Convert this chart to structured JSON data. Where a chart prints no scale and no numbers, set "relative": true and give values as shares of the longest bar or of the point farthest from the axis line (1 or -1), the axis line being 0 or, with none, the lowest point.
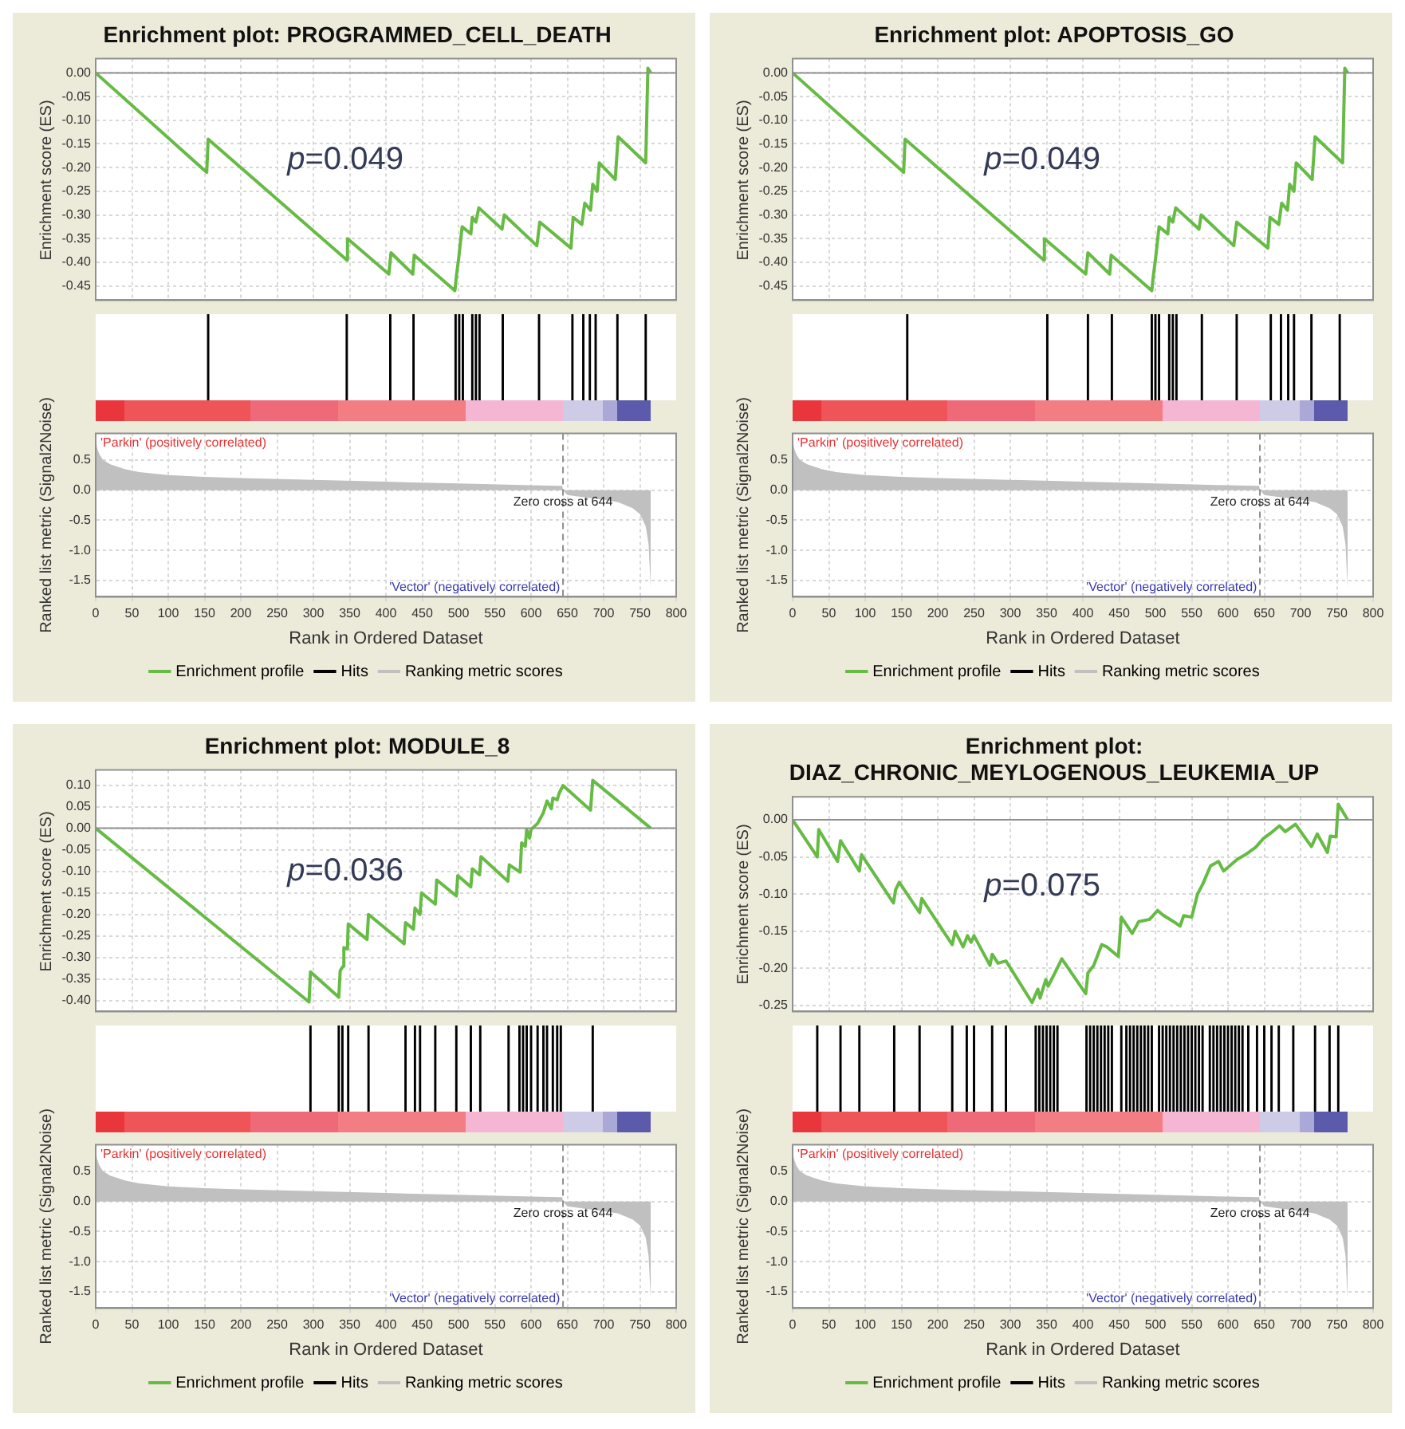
{
  "chart_data": [
    {
      "type": "line",
      "title": "Enrichment plot: PROGRAMMED_CELL_DEATH",
      "ylabel": "Enrichment score (ES)",
      "xlim": [
        0,
        800
      ],
      "xticks": [
        {
          "value": 0,
          "label": null
        },
        {
          "value": 50,
          "label": null
        },
        {
          "value": 100,
          "label": null
        },
        {
          "value": 150,
          "label": null
        },
        {
          "value": 200,
          "label": null
        },
        {
          "value": 250,
          "label": null
        },
        {
          "value": 300,
          "label": null
        },
        {
          "value": 350,
          "label": null
        },
        {
          "value": 400,
          "label": null
        },
        {
          "value": 450,
          "label": null
        },
        {
          "value": 500,
          "label": null
        },
        {
          "value": 550,
          "label": null
        },
        {
          "value": 600,
          "label": null
        },
        {
          "value": 650,
          "label": null
        },
        {
          "value": 700,
          "label": null
        },
        {
          "value": 750,
          "label": null
        },
        {
          "value": 800,
          "label": null
        }
      ],
      "ylim": [
        -0.48,
        0.03
      ],
      "yticks": [
        {
          "value": 0,
          "label": "0.00"
        },
        {
          "value": -0.05,
          "label": "-0.05"
        },
        {
          "value": -0.1,
          "label": "-0.10"
        },
        {
          "value": -0.15,
          "label": "-0.15"
        },
        {
          "value": -0.2,
          "label": "-0.20"
        },
        {
          "value": -0.25,
          "label": "-0.25"
        },
        {
          "value": -0.3,
          "label": "-0.30"
        },
        {
          "value": -0.35,
          "label": "-0.35"
        },
        {
          "value": -0.4,
          "label": "-0.40"
        },
        {
          "value": -0.45,
          "label": "-0.45"
        }
      ],
      "grid": true,
      "tick_labels": "y",
      "annotations": [
        "p=0.049"
      ],
      "ref_lines": [
        {
          "axis": "y",
          "value": 0,
          "color": "#909090"
        }
      ],
      "series": [
        {
          "name": "Enrichment profile",
          "color": "#66bb44",
          "x": [
            0,
            153,
            155,
            346,
            347,
            404,
            407,
            437,
            439,
            495,
            497,
            500,
            505,
            517,
            519,
            524,
            528,
            560,
            563,
            608,
            612,
            655,
            658,
            670,
            674,
            682,
            685,
            691,
            694,
            716,
            720,
            758,
            761,
            765
          ],
          "values": [
            0,
            -0.21,
            -0.14,
            -0.395,
            -0.35,
            -0.425,
            -0.38,
            -0.425,
            -0.385,
            -0.46,
            -0.43,
            -0.395,
            -0.325,
            -0.34,
            -0.305,
            -0.315,
            -0.285,
            -0.33,
            -0.3,
            -0.365,
            -0.315,
            -0.37,
            -0.305,
            -0.32,
            -0.275,
            -0.29,
            -0.235,
            -0.25,
            -0.19,
            -0.225,
            -0.135,
            -0.19,
            0.01,
            0
          ]
        }
      ]
    },
    {
      "type": "bar",
      "relative": true,
      "tick_labels": false,
      "xlim": [
        0,
        800
      ],
      "series": [
        {
          "name": "Hits",
          "color": "#000000",
          "x": [
            155,
            346,
            406,
            438,
            496,
            501,
            506,
            519,
            524,
            529,
            561,
            611,
            657,
            672,
            681,
            689,
            719,
            758
          ],
          "values": [
            1,
            1,
            1,
            1,
            1,
            1,
            1,
            1,
            1,
            1,
            1,
            1,
            1,
            1,
            1,
            1,
            1,
            1
          ]
        }
      ]
    },
    {
      "type": "area",
      "ylabel": "Ranked list metric (Signal2Noise)",
      "xlabel": "Rank in Ordered Dataset",
      "xlim": [
        0,
        800
      ],
      "xticks": [
        0,
        50,
        100,
        150,
        200,
        250,
        300,
        350,
        400,
        450,
        500,
        550,
        600,
        650,
        700,
        750,
        800
      ],
      "ylim": [
        -1.77,
        0.94
      ],
      "yticks": [
        {
          "value": 0.5,
          "label": "0.5"
        },
        {
          "value": 0,
          "label": "0.0"
        },
        {
          "value": -0.5,
          "label": "-0.5"
        },
        {
          "value": -1,
          "label": "-1.0"
        },
        {
          "value": -1.5,
          "label": "-1.5"
        }
      ],
      "grid": true,
      "legend": "bottom",
      "annotations": [
        "'Parkin' (positively correlated)",
        "'Vector' (negatively correlated)"
      ],
      "ref_lines": [
        {
          "axis": "x",
          "value": 644,
          "label": "Zero cross at 644",
          "line_style": "dashed",
          "color": "#909090"
        }
      ],
      "series": [
        {
          "name": "Ranking metric scores",
          "color": "#c0c0c0",
          "x": [
            0,
            2,
            5,
            10,
            20,
            40,
            60,
            100,
            150,
            200,
            300,
            400,
            500,
            600,
            640,
            643,
            644,
            650,
            680,
            700,
            720,
            740,
            750,
            758,
            762,
            765
          ],
          "values": [
            0.85,
            0.7,
            0.6,
            0.5,
            0.43,
            0.35,
            0.3,
            0.25,
            0.22,
            0.2,
            0.17,
            0.14,
            0.11,
            0.08,
            0.07,
            0.07,
            0,
            -0.08,
            -0.13,
            -0.16,
            -0.2,
            -0.3,
            -0.4,
            -0.6,
            -0.9,
            -1.65
          ]
        }
      ]
    },
    {
      "type": "line",
      "title": "Enrichment plot: APOPTOSIS_GO",
      "ylabel": "Enrichment score (ES)",
      "xlim": [
        0,
        800
      ],
      "xticks": [
        {
          "value": 0,
          "label": null
        },
        {
          "value": 50,
          "label": null
        },
        {
          "value": 100,
          "label": null
        },
        {
          "value": 150,
          "label": null
        },
        {
          "value": 200,
          "label": null
        },
        {
          "value": 250,
          "label": null
        },
        {
          "value": 300,
          "label": null
        },
        {
          "value": 350,
          "label": null
        },
        {
          "value": 400,
          "label": null
        },
        {
          "value": 450,
          "label": null
        },
        {
          "value": 500,
          "label": null
        },
        {
          "value": 550,
          "label": null
        },
        {
          "value": 600,
          "label": null
        },
        {
          "value": 650,
          "label": null
        },
        {
          "value": 700,
          "label": null
        },
        {
          "value": 750,
          "label": null
        },
        {
          "value": 800,
          "label": null
        }
      ],
      "ylim": [
        -0.48,
        0.03
      ],
      "yticks": [
        {
          "value": 0,
          "label": "0.00"
        },
        {
          "value": -0.05,
          "label": "-0.05"
        },
        {
          "value": -0.1,
          "label": "-0.10"
        },
        {
          "value": -0.15,
          "label": "-0.15"
        },
        {
          "value": -0.2,
          "label": "-0.20"
        },
        {
          "value": -0.25,
          "label": "-0.25"
        },
        {
          "value": -0.3,
          "label": "-0.30"
        },
        {
          "value": -0.35,
          "label": "-0.35"
        },
        {
          "value": -0.4,
          "label": "-0.40"
        },
        {
          "value": -0.45,
          "label": "-0.45"
        }
      ],
      "grid": true,
      "tick_labels": "y",
      "annotations": [
        "p=0.049"
      ],
      "ref_lines": [
        {
          "axis": "y",
          "value": 0,
          "color": "#909090"
        }
      ],
      "series": [
        {
          "name": "Enrichment profile",
          "color": "#66bb44",
          "x": [
            0,
            153,
            155,
            346,
            347,
            404,
            407,
            437,
            439,
            495,
            497,
            500,
            505,
            517,
            519,
            524,
            528,
            560,
            563,
            608,
            612,
            655,
            658,
            670,
            674,
            682,
            685,
            691,
            694,
            716,
            720,
            758,
            761,
            765
          ],
          "values": [
            0,
            -0.21,
            -0.14,
            -0.395,
            -0.35,
            -0.425,
            -0.38,
            -0.425,
            -0.385,
            -0.46,
            -0.43,
            -0.395,
            -0.325,
            -0.34,
            -0.305,
            -0.315,
            -0.285,
            -0.33,
            -0.3,
            -0.365,
            -0.315,
            -0.37,
            -0.305,
            -0.32,
            -0.275,
            -0.29,
            -0.235,
            -0.25,
            -0.19,
            -0.225,
            -0.135,
            -0.19,
            0.01,
            0
          ]
        }
      ]
    },
    {
      "type": "bar",
      "relative": true,
      "tick_labels": false,
      "xlim": [
        0,
        800
      ],
      "series": [
        {
          "name": "Hits",
          "color": "#000000",
          "x": [
            158,
            351,
            407,
            440,
            495,
            500,
            505,
            519,
            524,
            529,
            564,
            612,
            659,
            673,
            683,
            691,
            715,
            754
          ],
          "values": [
            1,
            1,
            1,
            1,
            1,
            1,
            1,
            1,
            1,
            1,
            1,
            1,
            1,
            1,
            1,
            1,
            1,
            1
          ]
        }
      ]
    },
    {
      "type": "area",
      "ylabel": "Ranked list metric (Signal2Noise)",
      "xlabel": "Rank in Ordered Dataset",
      "xlim": [
        0,
        800
      ],
      "xticks": [
        0,
        50,
        100,
        150,
        200,
        250,
        300,
        350,
        400,
        450,
        500,
        550,
        600,
        650,
        700,
        750,
        800
      ],
      "ylim": [
        -1.77,
        0.94
      ],
      "yticks": [
        {
          "value": 0.5,
          "label": "0.5"
        },
        {
          "value": 0,
          "label": "0.0"
        },
        {
          "value": -0.5,
          "label": "-0.5"
        },
        {
          "value": -1,
          "label": "-1.0"
        },
        {
          "value": -1.5,
          "label": "-1.5"
        }
      ],
      "grid": true,
      "legend": "bottom",
      "annotations": [
        "'Parkin' (positively correlated)",
        "'Vector' (negatively correlated)"
      ],
      "ref_lines": [
        {
          "axis": "x",
          "value": 644,
          "label": "Zero cross at 644",
          "line_style": "dashed",
          "color": "#909090"
        }
      ],
      "series": [
        {
          "name": "Ranking metric scores",
          "color": "#c0c0c0",
          "x": [
            0,
            2,
            5,
            10,
            20,
            40,
            60,
            100,
            150,
            200,
            300,
            400,
            500,
            600,
            640,
            643,
            644,
            650,
            680,
            700,
            720,
            740,
            750,
            758,
            762,
            765
          ],
          "values": [
            0.85,
            0.7,
            0.6,
            0.5,
            0.43,
            0.35,
            0.3,
            0.25,
            0.22,
            0.2,
            0.17,
            0.14,
            0.11,
            0.08,
            0.07,
            0.07,
            0,
            -0.08,
            -0.13,
            -0.16,
            -0.2,
            -0.3,
            -0.4,
            -0.6,
            -0.9,
            -1.65
          ]
        }
      ]
    },
    {
      "type": "line",
      "title": "Enrichment plot: MODULE_8",
      "ylabel": "Enrichment score (ES)",
      "xlim": [
        0,
        800
      ],
      "xticks": [
        {
          "value": 0,
          "label": null
        },
        {
          "value": 50,
          "label": null
        },
        {
          "value": 100,
          "label": null
        },
        {
          "value": 150,
          "label": null
        },
        {
          "value": 200,
          "label": null
        },
        {
          "value": 250,
          "label": null
        },
        {
          "value": 300,
          "label": null
        },
        {
          "value": 350,
          "label": null
        },
        {
          "value": 400,
          "label": null
        },
        {
          "value": 450,
          "label": null
        },
        {
          "value": 500,
          "label": null
        },
        {
          "value": 550,
          "label": null
        },
        {
          "value": 600,
          "label": null
        },
        {
          "value": 650,
          "label": null
        },
        {
          "value": 700,
          "label": null
        },
        {
          "value": 750,
          "label": null
        },
        {
          "value": 800,
          "label": null
        }
      ],
      "ylim": [
        -0.425,
        0.135
      ],
      "yticks": [
        {
          "value": 0.1,
          "label": "0.10"
        },
        {
          "value": 0.05,
          "label": "0.05"
        },
        {
          "value": 0,
          "label": "0.00"
        },
        {
          "value": -0.05,
          "label": "-0.05"
        },
        {
          "value": -0.1,
          "label": "-0.10"
        },
        {
          "value": -0.15,
          "label": "-0.15"
        },
        {
          "value": -0.2,
          "label": "-0.20"
        },
        {
          "value": -0.25,
          "label": "-0.25"
        },
        {
          "value": -0.3,
          "label": "-0.30"
        },
        {
          "value": -0.35,
          "label": "-0.35"
        },
        {
          "value": -0.4,
          "label": "-0.40"
        }
      ],
      "grid": true,
      "tick_labels": "y",
      "annotations": [
        "p=0.036"
      ],
      "ref_lines": [
        {
          "axis": "y",
          "value": 0,
          "color": "#909090"
        }
      ],
      "series": [
        {
          "name": "Enrichment profile",
          "color": "#66bb44",
          "x": [
            0,
            294,
            296,
            335,
            337,
            341,
            342,
            347,
            348,
            374,
            376,
            425,
            427,
            438,
            440,
            447,
            449,
            468,
            470,
            497,
            499,
            517,
            519,
            529,
            531,
            568,
            570,
            585,
            587,
            592,
            594,
            598,
            600,
            609,
            617,
            622,
            628,
            630,
            636,
            639,
            644,
            682,
            685,
            765
          ],
          "values": [
            0,
            -0.403,
            -0.333,
            -0.392,
            -0.33,
            -0.32,
            -0.277,
            -0.28,
            -0.222,
            -0.258,
            -0.2,
            -0.268,
            -0.219,
            -0.234,
            -0.185,
            -0.2,
            -0.15,
            -0.176,
            -0.12,
            -0.157,
            -0.11,
            -0.136,
            -0.094,
            -0.108,
            -0.066,
            -0.123,
            -0.085,
            -0.102,
            -0.034,
            -0.042,
            -0.003,
            -0.023,
            -0.003,
            0.011,
            0.036,
            0.063,
            0.045,
            0.07,
            0.066,
            0.082,
            0.099,
            0.042,
            0.111,
            0
          ]
        }
      ]
    },
    {
      "type": "bar",
      "relative": true,
      "tick_labels": false,
      "xlim": [
        0,
        800
      ],
      "series": [
        {
          "name": "Hits",
          "color": "#000000",
          "x": [
            296,
            335,
            340,
            348,
            376,
            427,
            440,
            447,
            468,
            497,
            517,
            530,
            569,
            584,
            589,
            594,
            600,
            609,
            617,
            622,
            630,
            636,
            641,
            685
          ],
          "values": [
            1,
            1,
            1,
            1,
            1,
            1,
            1,
            1,
            1,
            1,
            1,
            1,
            1,
            1,
            1,
            1,
            1,
            1,
            1,
            1,
            1,
            1,
            1,
            1
          ]
        }
      ]
    },
    {
      "type": "area",
      "ylabel": "Ranked list metric (Signal2Noise)",
      "xlabel": "Rank in Ordered Dataset",
      "xlim": [
        0,
        800
      ],
      "xticks": [
        0,
        50,
        100,
        150,
        200,
        250,
        300,
        350,
        400,
        450,
        500,
        550,
        600,
        650,
        700,
        750,
        800
      ],
      "ylim": [
        -1.77,
        0.94
      ],
      "yticks": [
        {
          "value": 0.5,
          "label": "0.5"
        },
        {
          "value": 0,
          "label": "0.0"
        },
        {
          "value": -0.5,
          "label": "-0.5"
        },
        {
          "value": -1,
          "label": "-1.0"
        },
        {
          "value": -1.5,
          "label": "-1.5"
        }
      ],
      "grid": true,
      "legend": "bottom",
      "annotations": [
        "'Parkin' (positively correlated)",
        "'Vector' (negatively correlated)"
      ],
      "ref_lines": [
        {
          "axis": "x",
          "value": 644,
          "label": "Zero cross at 644",
          "line_style": "dashed",
          "color": "#909090"
        }
      ],
      "series": [
        {
          "name": "Ranking metric scores",
          "color": "#c0c0c0",
          "x": [
            0,
            2,
            5,
            10,
            20,
            40,
            60,
            100,
            150,
            200,
            300,
            400,
            500,
            600,
            640,
            643,
            644,
            650,
            680,
            700,
            720,
            740,
            750,
            758,
            762,
            765
          ],
          "values": [
            0.85,
            0.7,
            0.6,
            0.5,
            0.43,
            0.35,
            0.3,
            0.25,
            0.22,
            0.2,
            0.17,
            0.14,
            0.11,
            0.08,
            0.07,
            0.07,
            0,
            -0.08,
            -0.13,
            -0.16,
            -0.2,
            -0.3,
            -0.4,
            -0.6,
            -0.9,
            -1.65
          ]
        }
      ]
    },
    {
      "type": "line",
      "title": "Enrichment plot: DIAZ_CHRONIC_MEYLOGENOUS_LEUKEMIA_UP",
      "ylabel": "Enrichment score (ES)",
      "xlim": [
        0,
        800
      ],
      "xticks": [
        {
          "value": 0,
          "label": null
        },
        {
          "value": 50,
          "label": null
        },
        {
          "value": 100,
          "label": null
        },
        {
          "value": 150,
          "label": null
        },
        {
          "value": 200,
          "label": null
        },
        {
          "value": 250,
          "label": null
        },
        {
          "value": 300,
          "label": null
        },
        {
          "value": 350,
          "label": null
        },
        {
          "value": 400,
          "label": null
        },
        {
          "value": 450,
          "label": null
        },
        {
          "value": 500,
          "label": null
        },
        {
          "value": 550,
          "label": null
        },
        {
          "value": 600,
          "label": null
        },
        {
          "value": 650,
          "label": null
        },
        {
          "value": 700,
          "label": null
        },
        {
          "value": 750,
          "label": null
        },
        {
          "value": 800,
          "label": null
        }
      ],
      "ylim": [
        -0.258,
        0.031
      ],
      "yticks": [
        {
          "value": 0,
          "label": "0.00"
        },
        {
          "value": -0.05,
          "label": "-0.05"
        },
        {
          "value": -0.1,
          "label": "-0.10"
        },
        {
          "value": -0.15,
          "label": "-0.15"
        },
        {
          "value": -0.2,
          "label": "-0.20"
        },
        {
          "value": -0.25,
          "label": "-0.25"
        }
      ],
      "grid": true,
      "tick_labels": "y",
      "annotations": [
        "p=0.075"
      ],
      "ref_lines": [
        {
          "axis": "y",
          "value": 0,
          "color": "#909090"
        }
      ],
      "series": [
        {
          "name": "Enrichment profile",
          "color": "#66bb44",
          "x": [
            0,
            34,
            36,
            62,
            66,
            92,
            95,
            139,
            142,
            147,
            175,
            178,
            220,
            224,
            235,
            241,
            246,
            250,
            272,
            275,
            283,
            294,
            330,
            338,
            341,
            349,
            352,
            360,
            371,
            404,
            407,
            415,
            426,
            433,
            449,
            453,
            468,
            477,
            492,
            503,
            510,
            525,
            534,
            539,
            550,
            558,
            565,
            576,
            587,
            594,
            613,
            624,
            638,
            649,
            660,
            671,
            679,
            693,
            715,
            723,
            737,
            741,
            749,
            752,
            765
          ],
          "values": [
            0,
            -0.05,
            -0.013,
            -0.056,
            -0.028,
            -0.069,
            -0.047,
            -0.112,
            -0.094,
            -0.084,
            -0.125,
            -0.106,
            -0.168,
            -0.15,
            -0.171,
            -0.156,
            -0.165,
            -0.156,
            -0.196,
            -0.181,
            -0.193,
            -0.19,
            -0.246,
            -0.228,
            -0.24,
            -0.215,
            -0.224,
            -0.209,
            -0.187,
            -0.234,
            -0.206,
            -0.196,
            -0.168,
            -0.171,
            -0.184,
            -0.131,
            -0.153,
            -0.137,
            -0.134,
            -0.122,
            -0.128,
            -0.137,
            -0.143,
            -0.129,
            -0.131,
            -0.1,
            -0.087,
            -0.062,
            -0.056,
            -0.069,
            -0.053,
            -0.047,
            -0.037,
            -0.025,
            -0.017,
            -0.008,
            -0.016,
            -0.006,
            -0.036,
            -0.019,
            -0.044,
            -0.022,
            -0.023,
            0.021,
            0
          ]
        }
      ]
    },
    {
      "type": "bar",
      "relative": true,
      "tick_labels": false,
      "xlim": [
        0,
        800
      ],
      "series": [
        {
          "name": "Hits",
          "color": "#000000",
          "x": [
            34,
            66,
            92,
            140,
            175,
            220,
            240,
            250,
            275,
            294,
            335,
            340,
            345,
            350,
            355,
            360,
            365,
            405,
            410,
            415,
            420,
            425,
            430,
            435,
            440,
            453,
            460,
            465,
            470,
            475,
            480,
            485,
            490,
            495,
            505,
            510,
            515,
            520,
            525,
            530,
            535,
            540,
            545,
            550,
            555,
            560,
            565,
            575,
            580,
            585,
            590,
            595,
            600,
            605,
            610,
            615,
            620,
            628,
            640,
            650,
            660,
            670,
            690,
            720,
            740,
            752
          ],
          "values": [
            1,
            1,
            1,
            1,
            1,
            1,
            1,
            1,
            1,
            1,
            1,
            1,
            1,
            1,
            1,
            1,
            1,
            1,
            1,
            1,
            1,
            1,
            1,
            1,
            1,
            1,
            1,
            1,
            1,
            1,
            1,
            1,
            1,
            1,
            1,
            1,
            1,
            1,
            1,
            1,
            1,
            1,
            1,
            1,
            1,
            1,
            1,
            1,
            1,
            1,
            1,
            1,
            1,
            1,
            1,
            1,
            1,
            1,
            1,
            1,
            1,
            1,
            1,
            1,
            1,
            1
          ]
        }
      ]
    },
    {
      "type": "area",
      "ylabel": "Ranked list metric (Signal2Noise)",
      "xlabel": "Rank in Ordered Dataset",
      "xlim": [
        0,
        800
      ],
      "xticks": [
        0,
        50,
        100,
        150,
        200,
        250,
        300,
        350,
        400,
        450,
        500,
        550,
        600,
        650,
        700,
        750,
        800
      ],
      "ylim": [
        -1.77,
        0.94
      ],
      "yticks": [
        {
          "value": 0.5,
          "label": "0.5"
        },
        {
          "value": 0,
          "label": "0.0"
        },
        {
          "value": -0.5,
          "label": "-0.5"
        },
        {
          "value": -1,
          "label": "-1.0"
        },
        {
          "value": -1.5,
          "label": "-1.5"
        }
      ],
      "grid": true,
      "legend": "bottom",
      "annotations": [
        "'Parkin' (positively correlated)",
        "'Vector' (negatively correlated)"
      ],
      "ref_lines": [
        {
          "axis": "x",
          "value": 644,
          "label": "Zero cross at 644",
          "line_style": "dashed",
          "color": "#909090"
        }
      ],
      "series": [
        {
          "name": "Ranking metric scores",
          "color": "#c0c0c0",
          "x": [
            0,
            2,
            5,
            10,
            20,
            40,
            60,
            100,
            150,
            200,
            300,
            400,
            500,
            600,
            640,
            643,
            644,
            650,
            680,
            700,
            720,
            740,
            750,
            758,
            762,
            765
          ],
          "values": [
            0.85,
            0.7,
            0.6,
            0.5,
            0.43,
            0.35,
            0.3,
            0.25,
            0.22,
            0.2,
            0.17,
            0.14,
            0.11,
            0.08,
            0.07,
            0.07,
            0,
            -0.08,
            -0.13,
            -0.16,
            -0.2,
            -0.3,
            -0.4,
            -0.6,
            -0.9,
            -1.65
          ]
        }
      ]
    }
  ]
}
